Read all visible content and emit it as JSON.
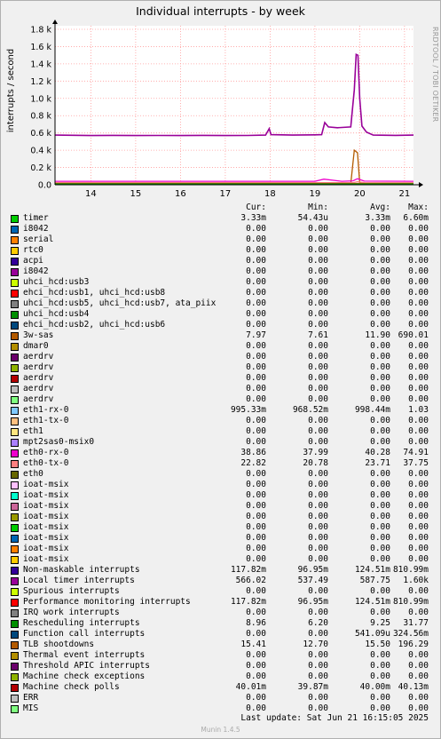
{
  "chart_data": {
    "type": "line",
    "title": "Individual interrupts - by week",
    "ylabel": "interrupts / second",
    "side_label": "RRDTOOL / TOBI OETIKER",
    "ylim": [
      0,
      1800
    ],
    "yticks": [
      0,
      200,
      400,
      600,
      800,
      1000,
      1200,
      1400,
      1600,
      1800
    ],
    "ytick_labels": [
      "0.0",
      "0.2 k",
      "0.4 k",
      "0.6 k",
      "0.8 k",
      "1.0 k",
      "1.2 k",
      "1.4 k",
      "1.6 k",
      "1.8 k"
    ],
    "xlim": [
      13.2,
      21.2
    ],
    "xticks": [
      14,
      15,
      16,
      17,
      18,
      19,
      20,
      21
    ],
    "xtick_labels": [
      "14",
      "15",
      "16",
      "17",
      "18",
      "19",
      "20",
      "21"
    ],
    "grid": true,
    "columns": [
      "Cur:",
      "Min:",
      "Avg:",
      "Max:"
    ],
    "series": [
      {
        "name": "timer",
        "color": "#00cc00",
        "cur": "3.33m",
        "min": "54.43u",
        "avg": "3.33m",
        "max": "6.60m"
      },
      {
        "name": "i8042",
        "color": "#0066b3",
        "cur": "0.00",
        "min": "0.00",
        "avg": "0.00",
        "max": "0.00"
      },
      {
        "name": "serial",
        "color": "#ff8000",
        "cur": "0.00",
        "min": "0.00",
        "avg": "0.00",
        "max": "0.00"
      },
      {
        "name": "rtc0",
        "color": "#ffcc00",
        "cur": "0.00",
        "min": "0.00",
        "avg": "0.00",
        "max": "0.00"
      },
      {
        "name": "acpi",
        "color": "#330099",
        "cur": "0.00",
        "min": "0.00",
        "avg": "0.00",
        "max": "0.00"
      },
      {
        "name": "i8042",
        "color": "#990099",
        "cur": "0.00",
        "min": "0.00",
        "avg": "0.00",
        "max": "0.00"
      },
      {
        "name": "uhci_hcd:usb3",
        "color": "#ccff00",
        "cur": "0.00",
        "min": "0.00",
        "avg": "0.00",
        "max": "0.00"
      },
      {
        "name": "ehci_hcd:usb1, uhci_hcd:usb8",
        "color": "#ff0000",
        "cur": "0.00",
        "min": "0.00",
        "avg": "0.00",
        "max": "0.00"
      },
      {
        "name": "uhci_hcd:usb5, uhci_hcd:usb7, ata_piix",
        "color": "#808080",
        "cur": "0.00",
        "min": "0.00",
        "avg": "0.00",
        "max": "0.00"
      },
      {
        "name": "uhci_hcd:usb4",
        "color": "#008f00",
        "cur": "0.00",
        "min": "0.00",
        "avg": "0.00",
        "max": "0.00"
      },
      {
        "name": "ehci_hcd:usb2, uhci_hcd:usb6",
        "color": "#00487d",
        "cur": "0.00",
        "min": "0.00",
        "avg": "0.00",
        "max": "0.00"
      },
      {
        "name": "3w-sas",
        "color": "#b35a00",
        "cur": "7.97",
        "min": "7.61",
        "avg": "11.90",
        "max": "690.01"
      },
      {
        "name": "dmar0",
        "color": "#b38f00",
        "cur": "0.00",
        "min": "0.00",
        "avg": "0.00",
        "max": "0.00"
      },
      {
        "name": "aerdrv",
        "color": "#6b006b",
        "cur": "0.00",
        "min": "0.00",
        "avg": "0.00",
        "max": "0.00"
      },
      {
        "name": "aerdrv",
        "color": "#8fb300",
        "cur": "0.00",
        "min": "0.00",
        "avg": "0.00",
        "max": "0.00"
      },
      {
        "name": "aerdrv",
        "color": "#b30000",
        "cur": "0.00",
        "min": "0.00",
        "avg": "0.00",
        "max": "0.00"
      },
      {
        "name": "aerdrv",
        "color": "#bebebe",
        "cur": "0.00",
        "min": "0.00",
        "avg": "0.00",
        "max": "0.00"
      },
      {
        "name": "aerdrv",
        "color": "#80ff80",
        "cur": "0.00",
        "min": "0.00",
        "avg": "0.00",
        "max": "0.00"
      },
      {
        "name": "eth1-rx-0",
        "color": "#80c9ff",
        "cur": "995.33m",
        "min": "968.52m",
        "avg": "998.44m",
        "max": "1.03"
      },
      {
        "name": "eth1-tx-0",
        "color": "#ffc080",
        "cur": "0.00",
        "min": "0.00",
        "avg": "0.00",
        "max": "0.00"
      },
      {
        "name": "eth1",
        "color": "#ffe680",
        "cur": "0.00",
        "min": "0.00",
        "avg": "0.00",
        "max": "0.00"
      },
      {
        "name": "mpt2sas0-msix0",
        "color": "#aa80ff",
        "cur": "0.00",
        "min": "0.00",
        "avg": "0.00",
        "max": "0.00"
      },
      {
        "name": "eth0-rx-0",
        "color": "#ee00cc",
        "cur": "38.86",
        "min": "37.99",
        "avg": "40.28",
        "max": "74.91"
      },
      {
        "name": "eth0-tx-0",
        "color": "#ff8080",
        "cur": "22.82",
        "min": "20.78",
        "avg": "23.71",
        "max": "37.75"
      },
      {
        "name": "eth0",
        "color": "#666600",
        "cur": "0.00",
        "min": "0.00",
        "avg": "0.00",
        "max": "0.00"
      },
      {
        "name": "ioat-msix",
        "color": "#ffbfff",
        "cur": "0.00",
        "min": "0.00",
        "avg": "0.00",
        "max": "0.00"
      },
      {
        "name": "ioat-msix",
        "color": "#00ffcc",
        "cur": "0.00",
        "min": "0.00",
        "avg": "0.00",
        "max": "0.00"
      },
      {
        "name": "ioat-msix",
        "color": "#cc6699",
        "cur": "0.00",
        "min": "0.00",
        "avg": "0.00",
        "max": "0.00"
      },
      {
        "name": "ioat-msix",
        "color": "#999900",
        "cur": "0.00",
        "min": "0.00",
        "avg": "0.00",
        "max": "0.00"
      },
      {
        "name": "ioat-msix",
        "color": "#00cc00",
        "cur": "0.00",
        "min": "0.00",
        "avg": "0.00",
        "max": "0.00"
      },
      {
        "name": "ioat-msix",
        "color": "#0066b3",
        "cur": "0.00",
        "min": "0.00",
        "avg": "0.00",
        "max": "0.00"
      },
      {
        "name": "ioat-msix",
        "color": "#ff8000",
        "cur": "0.00",
        "min": "0.00",
        "avg": "0.00",
        "max": "0.00"
      },
      {
        "name": "ioat-msix",
        "color": "#ffcc00",
        "cur": "0.00",
        "min": "0.00",
        "avg": "0.00",
        "max": "0.00"
      },
      {
        "name": "Non-maskable interrupts",
        "color": "#330099",
        "cur": "117.82m",
        "min": "96.95m",
        "avg": "124.51m",
        "max": "810.99m"
      },
      {
        "name": "Local timer interrupts",
        "color": "#990099",
        "cur": "566.02",
        "min": "537.49",
        "avg": "587.75",
        "max": "1.60k"
      },
      {
        "name": "Spurious interrupts",
        "color": "#ccff00",
        "cur": "0.00",
        "min": "0.00",
        "avg": "0.00",
        "max": "0.00"
      },
      {
        "name": "Performance monitoring interrupts",
        "color": "#ff0000",
        "cur": "117.82m",
        "min": "96.95m",
        "avg": "124.51m",
        "max": "810.99m"
      },
      {
        "name": "IRQ work interrupts",
        "color": "#808080",
        "cur": "0.00",
        "min": "0.00",
        "avg": "0.00",
        "max": "0.00"
      },
      {
        "name": "Rescheduling interrupts",
        "color": "#008f00",
        "cur": "8.96",
        "min": "6.20",
        "avg": "9.25",
        "max": "31.77"
      },
      {
        "name": "Function call interrupts",
        "color": "#00487d",
        "cur": "0.00",
        "min": "0.00",
        "avg": "541.09u",
        "max": "324.56m"
      },
      {
        "name": "TLB shootdowns",
        "color": "#b35a00",
        "cur": "15.41",
        "min": "12.70",
        "avg": "15.50",
        "max": "196.29"
      },
      {
        "name": "Thermal event interrupts",
        "color": "#b38f00",
        "cur": "0.00",
        "min": "0.00",
        "avg": "0.00",
        "max": "0.00"
      },
      {
        "name": "Threshold APIC interrupts",
        "color": "#6b006b",
        "cur": "0.00",
        "min": "0.00",
        "avg": "0.00",
        "max": "0.00"
      },
      {
        "name": "Machine check exceptions",
        "color": "#8fb300",
        "cur": "0.00",
        "min": "0.00",
        "avg": "0.00",
        "max": "0.00"
      },
      {
        "name": "Machine check polls",
        "color": "#b30000",
        "cur": "40.01m",
        "min": "39.87m",
        "avg": "40.00m",
        "max": "40.13m"
      },
      {
        "name": "ERR",
        "color": "#bebebe",
        "cur": "0.00",
        "min": "0.00",
        "avg": "0.00",
        "max": "0.00"
      },
      {
        "name": "MIS",
        "color": "#80ff80",
        "cur": "0.00",
        "min": "0.00",
        "avg": "0.00",
        "max": "0.00"
      }
    ],
    "plotted_lines": [
      {
        "ref": "Local timer interrupts",
        "color": "#990099",
        "points": [
          [
            13.2,
            575
          ],
          [
            13.6,
            573
          ],
          [
            14.0,
            570
          ],
          [
            14.5,
            572
          ],
          [
            15.0,
            570
          ],
          [
            15.5,
            571
          ],
          [
            16.0,
            570
          ],
          [
            16.5,
            572
          ],
          [
            17.0,
            570
          ],
          [
            17.5,
            571
          ],
          [
            17.9,
            575
          ],
          [
            17.98,
            650
          ],
          [
            18.02,
            580
          ],
          [
            18.5,
            575
          ],
          [
            19.0,
            578
          ],
          [
            19.15,
            580
          ],
          [
            19.22,
            720
          ],
          [
            19.3,
            670
          ],
          [
            19.5,
            660
          ],
          [
            19.8,
            670
          ],
          [
            19.88,
            1100
          ],
          [
            19.92,
            1510
          ],
          [
            19.96,
            1500
          ],
          [
            20.0,
            1000
          ],
          [
            20.05,
            680
          ],
          [
            20.15,
            610
          ],
          [
            20.3,
            575
          ],
          [
            20.8,
            572
          ],
          [
            21.2,
            575
          ]
        ]
      },
      {
        "name_ref": "3w-sas",
        "color": "#b35a00",
        "points": [
          [
            13.2,
            10
          ],
          [
            19.8,
            10
          ],
          [
            19.88,
            400
          ],
          [
            19.95,
            370
          ],
          [
            20.0,
            20
          ],
          [
            21.2,
            10
          ]
        ]
      },
      {
        "ref": "eth0-rx-0",
        "color": "#ee00cc",
        "points": [
          [
            13.2,
            40
          ],
          [
            19.0,
            40
          ],
          [
            19.2,
            65
          ],
          [
            19.6,
            40
          ],
          [
            19.85,
            45
          ],
          [
            19.95,
            70
          ],
          [
            20.1,
            42
          ],
          [
            21.2,
            40
          ]
        ]
      },
      {
        "ref": "eth0-tx-0",
        "color": "#ff8080",
        "points": [
          [
            13.2,
            24
          ],
          [
            19.85,
            24
          ],
          [
            19.95,
            36
          ],
          [
            20.1,
            24
          ],
          [
            21.2,
            23
          ]
        ]
      },
      {
        "ref": "TLB shootdowns",
        "color": "#b35a00",
        "points": [
          [
            13.2,
            15
          ],
          [
            21.2,
            15
          ]
        ]
      },
      {
        "ref": "Rescheduling interrupts",
        "color": "#008f00",
        "points": [
          [
            13.2,
            9
          ],
          [
            21.2,
            9
          ]
        ]
      }
    ]
  },
  "footer": {
    "last_update": "Last update:  Sat Jun 21 16:15:05 2025",
    "munin": "Munin 1.4.5"
  }
}
